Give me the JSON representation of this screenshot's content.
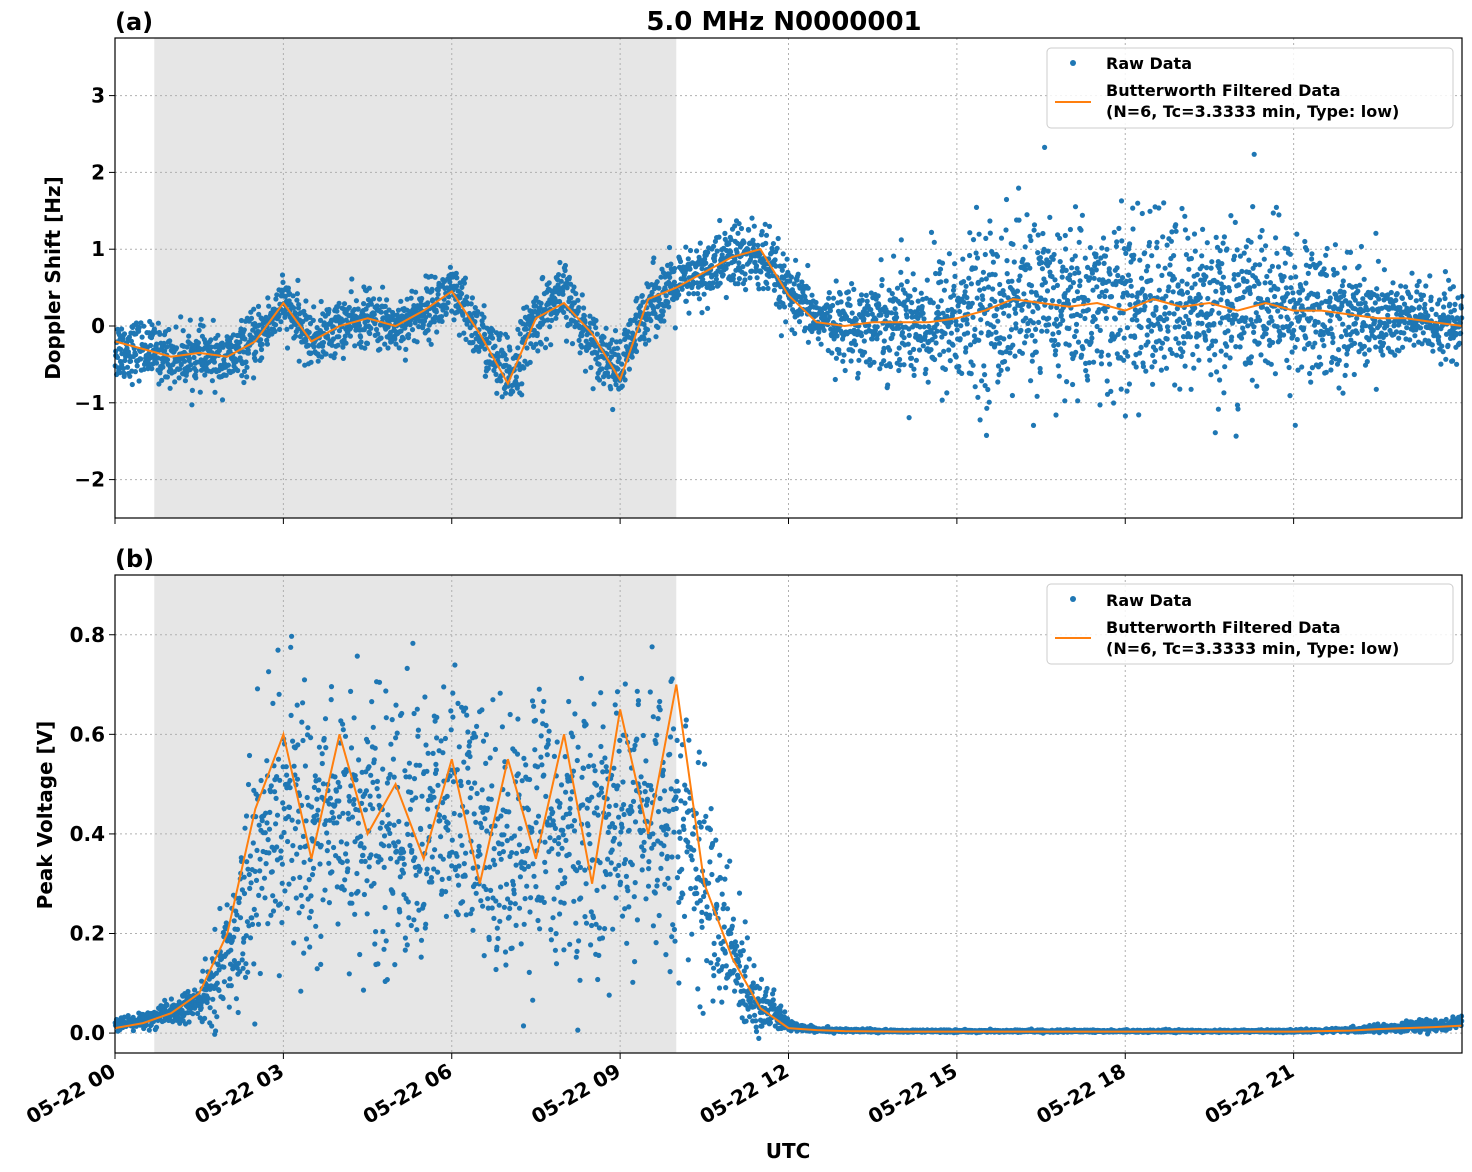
{
  "title": "5.0 MHz N0000001",
  "colors": {
    "raw": "#1f77b4",
    "filtered": "#ff7f0e",
    "shade": "#e6e6e6",
    "grid": "#b0b0b0"
  },
  "chart_data": [
    {
      "type": "scatter",
      "panel_label": "(a)",
      "ylabel": "Doppler Shift [Hz]",
      "xlabel": "",
      "xlim": [
        0,
        24
      ],
      "ylim": [
        -2.5,
        3.75
      ],
      "yticks": [
        -2,
        -1,
        0,
        1,
        2,
        3
      ],
      "ytick_labels": [
        "−2",
        "−1",
        "0",
        "1",
        "2",
        "3"
      ],
      "xticks": [
        0,
        3,
        6,
        9,
        12,
        15,
        18,
        21
      ],
      "grid": true,
      "legend": "top-right",
      "shaded_interval_hours": [
        0.7,
        10.0
      ],
      "x_units": "hours UTC on 05-22",
      "series": [
        {
          "name": "Raw Data",
          "kind": "scatter",
          "x": [
            0,
            0.5,
            1,
            1.5,
            2,
            2.5,
            3,
            3.5,
            4,
            4.5,
            5,
            5.5,
            6,
            6.5,
            7,
            7.5,
            8,
            8.5,
            9,
            9.5,
            10,
            10.5,
            11,
            11.5,
            12,
            12.5,
            13,
            13.5,
            14,
            14.5,
            15,
            15.5,
            16,
            16.5,
            17,
            17.5,
            18,
            18.5,
            19,
            19.5,
            20,
            20.5,
            21,
            21.5,
            22,
            22.5,
            23,
            23.5,
            24
          ],
          "center": [
            -0.3,
            -0.3,
            -0.4,
            -0.4,
            -0.45,
            -0.2,
            0.3,
            -0.2,
            0.0,
            0.1,
            0.0,
            0.2,
            0.4,
            -0.1,
            -0.7,
            0.1,
            0.4,
            -0.2,
            -0.6,
            0.3,
            0.5,
            0.7,
            0.9,
            0.9,
            0.4,
            0.1,
            0.0,
            0.05,
            0.1,
            0.05,
            0.1,
            0.2,
            0.3,
            0.3,
            0.25,
            0.3,
            0.2,
            0.3,
            0.25,
            0.3,
            0.2,
            0.3,
            0.2,
            0.2,
            0.15,
            0.1,
            0.1,
            0.05,
            0.0
          ],
          "spread": [
            0.35,
            0.3,
            0.3,
            0.3,
            0.3,
            0.3,
            0.3,
            0.3,
            0.3,
            0.3,
            0.3,
            0.3,
            0.35,
            0.35,
            0.4,
            0.35,
            0.35,
            0.3,
            0.35,
            0.35,
            0.35,
            0.35,
            0.4,
            0.4,
            0.35,
            0.3,
            0.4,
            0.5,
            0.6,
            0.7,
            0.8,
            0.9,
            0.95,
            0.95,
            0.95,
            0.95,
            0.95,
            0.95,
            0.95,
            0.9,
            0.9,
            0.85,
            0.8,
            0.75,
            0.65,
            0.55,
            0.45,
            0.4,
            0.35
          ]
        },
        {
          "name": "Butterworth Filtered Data\n(N=6, Tc=3.3333 min, Type: low)",
          "kind": "line",
          "x": [
            0,
            0.5,
            1,
            1.5,
            2,
            2.5,
            3,
            3.5,
            4,
            4.5,
            5,
            5.5,
            6,
            6.5,
            7,
            7.5,
            8,
            8.5,
            9,
            9.5,
            10,
            10.5,
            11,
            11.5,
            12,
            12.5,
            13,
            13.5,
            14,
            14.5,
            15,
            15.5,
            16,
            16.5,
            17,
            17.5,
            18,
            18.5,
            19,
            19.5,
            20,
            20.5,
            21,
            21.5,
            22,
            22.5,
            23,
            23.5,
            24
          ],
          "y": [
            -0.2,
            -0.3,
            -0.4,
            -0.35,
            -0.4,
            -0.2,
            0.3,
            -0.2,
            0.0,
            0.1,
            0.0,
            0.2,
            0.45,
            -0.1,
            -0.75,
            0.1,
            0.3,
            -0.1,
            -0.7,
            0.35,
            0.5,
            0.7,
            0.9,
            1.0,
            0.4,
            0.05,
            0.0,
            0.05,
            0.05,
            0.05,
            0.1,
            0.2,
            0.35,
            0.3,
            0.25,
            0.3,
            0.2,
            0.35,
            0.25,
            0.3,
            0.2,
            0.3,
            0.2,
            0.2,
            0.15,
            0.1,
            0.1,
            0.05,
            0.0
          ]
        }
      ]
    },
    {
      "type": "scatter",
      "panel_label": "(b)",
      "ylabel": "Peak Voltage [V]",
      "xlabel": "UTC",
      "xlim": [
        0,
        24
      ],
      "ylim": [
        -0.04,
        0.92
      ],
      "yticks": [
        0.0,
        0.2,
        0.4,
        0.6,
        0.8
      ],
      "ytick_labels": [
        "0.0",
        "0.2",
        "0.4",
        "0.6",
        "0.8"
      ],
      "xticks": [
        0,
        3,
        6,
        9,
        12,
        15,
        18,
        21
      ],
      "xtick_labels": [
        "05-22 00",
        "05-22 03",
        "05-22 06",
        "05-22 09",
        "05-22 12",
        "05-22 15",
        "05-22 18",
        "05-22 21"
      ],
      "grid": true,
      "legend": "top-right",
      "shaded_interval_hours": [
        0.7,
        10.0
      ],
      "x_units": "hours UTC on 05-22",
      "series": [
        {
          "name": "Raw Data",
          "kind": "scatter",
          "x": [
            0,
            0.5,
            1,
            1.5,
            2,
            2.5,
            3,
            3.5,
            4,
            4.5,
            5,
            5.5,
            6,
            6.5,
            7,
            7.5,
            8,
            8.5,
            9,
            9.5,
            10,
            10.5,
            11,
            11.5,
            12,
            12.5,
            13,
            14,
            15,
            16,
            17,
            18,
            19,
            20,
            21,
            22,
            22.5,
            23,
            23.5,
            24
          ],
          "center": [
            0.015,
            0.025,
            0.04,
            0.06,
            0.15,
            0.35,
            0.45,
            0.4,
            0.45,
            0.42,
            0.4,
            0.42,
            0.45,
            0.4,
            0.38,
            0.42,
            0.4,
            0.38,
            0.42,
            0.4,
            0.45,
            0.3,
            0.15,
            0.06,
            0.015,
            0.008,
            0.005,
            0.004,
            0.004,
            0.004,
            0.004,
            0.004,
            0.004,
            0.004,
            0.004,
            0.006,
            0.01,
            0.012,
            0.015,
            0.02
          ],
          "spread": [
            0.01,
            0.015,
            0.02,
            0.03,
            0.1,
            0.2,
            0.22,
            0.22,
            0.22,
            0.22,
            0.22,
            0.22,
            0.22,
            0.22,
            0.22,
            0.22,
            0.22,
            0.22,
            0.22,
            0.22,
            0.22,
            0.18,
            0.12,
            0.05,
            0.01,
            0.005,
            0.003,
            0.002,
            0.002,
            0.002,
            0.002,
            0.002,
            0.002,
            0.002,
            0.002,
            0.004,
            0.006,
            0.008,
            0.01,
            0.01
          ]
        },
        {
          "name": "Butterworth Filtered Data\n(N=6, Tc=3.3333 min, Type: low)",
          "kind": "line",
          "x": [
            0,
            0.5,
            1,
            1.5,
            2,
            2.5,
            3,
            3.5,
            4,
            4.5,
            5,
            5.5,
            6,
            6.5,
            7,
            7.5,
            8,
            8.5,
            9,
            9.5,
            10,
            10.5,
            11,
            11.5,
            12,
            12.5,
            13,
            14,
            15,
            16,
            17,
            18,
            19,
            20,
            21,
            22,
            22.5,
            23,
            23.5,
            24
          ],
          "y": [
            0.01,
            0.02,
            0.04,
            0.08,
            0.2,
            0.45,
            0.6,
            0.35,
            0.6,
            0.4,
            0.5,
            0.35,
            0.55,
            0.3,
            0.55,
            0.35,
            0.6,
            0.3,
            0.65,
            0.4,
            0.7,
            0.3,
            0.15,
            0.05,
            0.01,
            0.006,
            0.004,
            0.003,
            0.003,
            0.003,
            0.003,
            0.003,
            0.003,
            0.003,
            0.003,
            0.005,
            0.008,
            0.01,
            0.012,
            0.015
          ]
        }
      ]
    }
  ]
}
